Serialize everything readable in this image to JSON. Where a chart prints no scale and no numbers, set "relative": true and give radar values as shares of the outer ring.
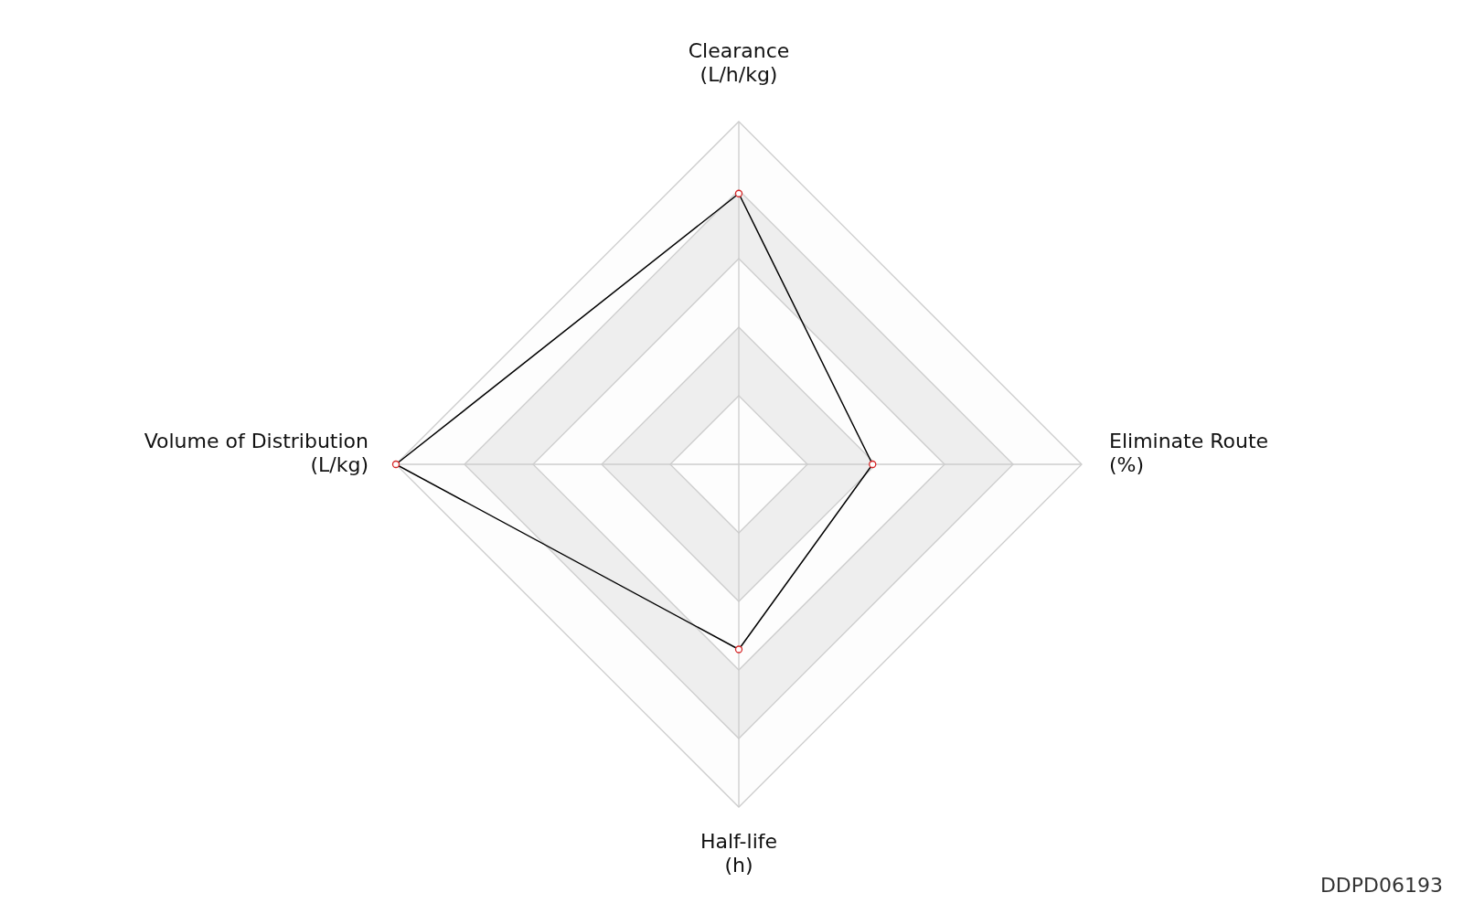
{
  "chart_data": {
    "type": "radar",
    "relative": true,
    "categories": [
      "Clearance\n(L/h/kg)",
      "Eliminate Route\n(%)",
      "Half-life\n(h)",
      "Volume of Distribution\n(L/kg)"
    ],
    "series": [
      {
        "color": "#000000",
        "values": [
          0.79,
          0.39,
          0.54,
          1
        ]
      }
    ],
    "marker": "circle",
    "grid": true,
    "annotations": [
      "DDPD06193"
    ]
  }
}
